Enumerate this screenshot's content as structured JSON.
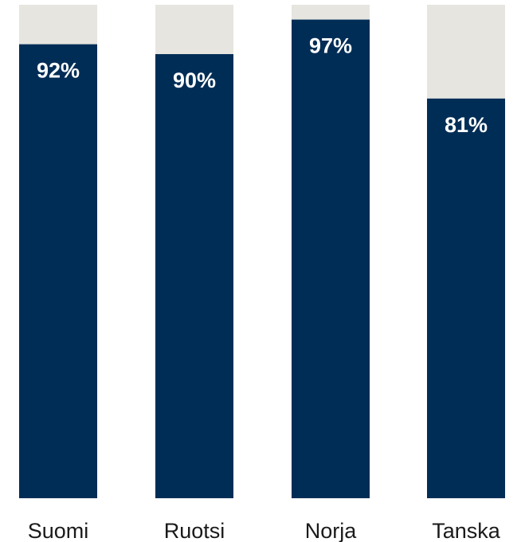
{
  "chart_data": {
    "type": "bar",
    "stacked_to_100": true,
    "categories": [
      "Suomi",
      "Ruotsi",
      "Norja",
      "Tanska"
    ],
    "values": [
      92,
      90,
      97,
      81
    ],
    "value_labels": [
      "92%",
      "90%",
      "97%",
      "81%"
    ],
    "ylim": [
      0,
      100
    ],
    "grid": false,
    "legend": "none"
  },
  "colors": {
    "bar": "#002d56",
    "remainder": "#e6e5e0",
    "value_label": "#ffffff",
    "category_label": "#1a1a1a"
  }
}
